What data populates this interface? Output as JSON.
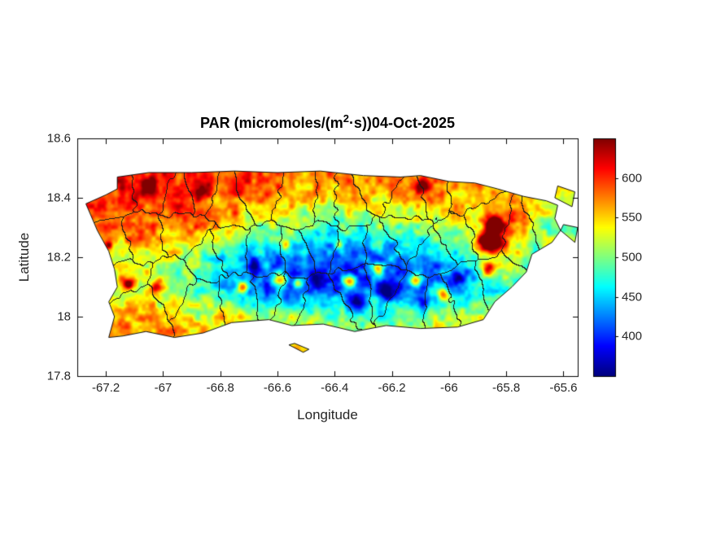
{
  "figure": {
    "background": "#ffffff",
    "title": {
      "prefix": "PAR (micromoles/(m",
      "sup": "2",
      "suffix": "·s))04-Oct-2025",
      "full": "PAR (micromoles/(m^2·s))04-Oct-2025"
    },
    "xlabel": "Longitude",
    "ylabel": "Latitude"
  },
  "chart_data": {
    "type": "heatmap",
    "title": "PAR (micromoles/(m^2·s))04-Oct-2025",
    "variable": "PAR",
    "units": "micromoles/(m^2·s)",
    "date": "04-Oct-2025",
    "region": "Puerto Rico",
    "xlabel": "Longitude",
    "ylabel": "Latitude",
    "xlim": [
      -67.3,
      -65.55
    ],
    "ylim": [
      17.8,
      18.6
    ],
    "xticks": [
      -67.2,
      -67,
      -66.8,
      -66.6,
      -66.4,
      -66.2,
      -66,
      -65.8,
      -65.6
    ],
    "xtick_labels": [
      "-67.2",
      "-67",
      "-66.8",
      "-66.6",
      "-66.4",
      "-66.2",
      "-66",
      "-65.8",
      "-65.6"
    ],
    "yticks": [
      17.8,
      18,
      18.2,
      18.4,
      18.6
    ],
    "ytick_labels": [
      "17.8",
      "18",
      "18.2",
      "18.4",
      "18.6"
    ],
    "colormap": "jet",
    "clim": [
      350,
      650
    ],
    "colorbar": {
      "orientation": "vertical",
      "ticks": [
        400,
        450,
        500,
        550,
        600
      ],
      "tick_labels": [
        "400",
        "450",
        "500",
        "550",
        "600"
      ]
    },
    "colors": {
      "coastline": "#111111",
      "boundary": "#1a1a1a",
      "axis": "#262626"
    },
    "grid_lon": [
      -67.3,
      -67.2,
      -67.1,
      -67.0,
      -66.9,
      -66.8,
      -66.7,
      -66.6,
      -66.5,
      -66.4,
      -66.3,
      -66.2,
      -66.1,
      -66.0,
      -65.9,
      -65.8,
      -65.7,
      -65.6
    ],
    "grid_lat": [
      17.9,
      18.0,
      18.1,
      18.2,
      18.3,
      18.4,
      18.5,
      18.6
    ],
    "values": [
      [
        560,
        570,
        580,
        575,
        565,
        560,
        555,
        560,
        545,
        540,
        535,
        540,
        545,
        550,
        550,
        545,
        540,
        535
      ],
      [
        545,
        560,
        575,
        560,
        545,
        535,
        525,
        515,
        500,
        490,
        485,
        495,
        505,
        515,
        530,
        530,
        515,
        505
      ],
      [
        505,
        520,
        535,
        515,
        495,
        455,
        420,
        405,
        395,
        400,
        410,
        405,
        415,
        425,
        445,
        480,
        470,
        490
      ],
      [
        515,
        535,
        550,
        525,
        500,
        465,
        440,
        425,
        415,
        410,
        420,
        430,
        440,
        450,
        470,
        540,
        490,
        480
      ],
      [
        555,
        570,
        580,
        580,
        570,
        550,
        525,
        510,
        495,
        485,
        495,
        490,
        505,
        515,
        540,
        600,
        530,
        500
      ],
      [
        585,
        600,
        610,
        605,
        595,
        590,
        580,
        570,
        555,
        540,
        550,
        555,
        565,
        565,
        560,
        545,
        540,
        520
      ],
      [
        595,
        600,
        605,
        600,
        595,
        600,
        595,
        590,
        590,
        585,
        590,
        585,
        590,
        585,
        580,
        575,
        570,
        565
      ],
      [
        600,
        600,
        600,
        600,
        595,
        595,
        595,
        595,
        595,
        590,
        590,
        590,
        590,
        590,
        585,
        585,
        585,
        585
      ]
    ],
    "island_outline": [
      [
        -67.16,
        18.47
      ],
      [
        -67.05,
        18.485
      ],
      [
        -66.9,
        18.485
      ],
      [
        -66.75,
        18.49
      ],
      [
        -66.6,
        18.485
      ],
      [
        -66.45,
        18.49
      ],
      [
        -66.3,
        18.475
      ],
      [
        -66.17,
        18.47
      ],
      [
        -66.1,
        18.475
      ],
      [
        -66.0,
        18.455
      ],
      [
        -65.91,
        18.45
      ],
      [
        -65.83,
        18.43
      ],
      [
        -65.74,
        18.405
      ],
      [
        -65.66,
        18.39
      ],
      [
        -65.62,
        18.375
      ],
      [
        -65.63,
        18.33
      ],
      [
        -65.61,
        18.29
      ],
      [
        -65.64,
        18.25
      ],
      [
        -65.71,
        18.21
      ],
      [
        -65.73,
        18.15
      ],
      [
        -65.78,
        18.1
      ],
      [
        -65.84,
        18.05
      ],
      [
        -65.88,
        17.99
      ],
      [
        -65.97,
        17.965
      ],
      [
        -66.1,
        17.96
      ],
      [
        -66.22,
        17.97
      ],
      [
        -66.33,
        17.95
      ],
      [
        -66.44,
        17.975
      ],
      [
        -66.55,
        17.97
      ],
      [
        -66.63,
        17.99
      ],
      [
        -66.76,
        17.98
      ],
      [
        -66.86,
        17.945
      ],
      [
        -66.96,
        17.93
      ],
      [
        -67.06,
        17.95
      ],
      [
        -67.14,
        17.935
      ],
      [
        -67.19,
        17.93
      ],
      [
        -67.17,
        18.0
      ],
      [
        -67.19,
        18.05
      ],
      [
        -67.16,
        18.1
      ],
      [
        -67.17,
        18.16
      ],
      [
        -67.19,
        18.22
      ],
      [
        -67.23,
        18.29
      ],
      [
        -67.27,
        18.38
      ],
      [
        -67.2,
        18.41
      ],
      [
        -67.16,
        18.43
      ]
    ],
    "islets": [
      [
        [
          -65.62,
          18.44
        ],
        [
          -65.56,
          18.42
        ],
        [
          -65.57,
          18.37
        ],
        [
          -65.63,
          18.4
        ]
      ],
      [
        [
          -65.61,
          18.29
        ],
        [
          -65.56,
          18.25
        ],
        [
          -65.55,
          18.3
        ],
        [
          -65.6,
          18.31
        ]
      ],
      [
        [
          -66.56,
          17.905
        ],
        [
          -66.51,
          17.88
        ],
        [
          -66.49,
          17.89
        ],
        [
          -66.54,
          17.91
        ]
      ]
    ],
    "hotspots": [
      [
        -67.12,
        18.11,
        140,
        0.02
      ],
      [
        -67.02,
        18.1,
        120,
        0.02
      ],
      [
        -66.72,
        18.1,
        150,
        0.02
      ],
      [
        -66.59,
        18.12,
        160,
        0.025
      ],
      [
        -66.53,
        18.11,
        140,
        0.018
      ],
      [
        -66.35,
        18.12,
        170,
        0.022
      ],
      [
        -66.25,
        18.16,
        120,
        0.018
      ],
      [
        -66.12,
        18.12,
        130,
        0.02
      ],
      [
        -66.02,
        18.08,
        120,
        0.02
      ],
      [
        -65.86,
        18.25,
        200,
        0.04
      ],
      [
        -65.86,
        18.16,
        140,
        0.025
      ],
      [
        -65.84,
        18.31,
        170,
        0.03
      ],
      [
        -66.57,
        18.24,
        100,
        0.015
      ],
      [
        -66.38,
        18.24,
        90,
        0.015
      ],
      [
        -67.06,
        18.44,
        90,
        0.03
      ],
      [
        -66.86,
        18.42,
        80,
        0.03
      ],
      [
        -66.09,
        18.44,
        90,
        0.025
      ],
      [
        -67.19,
        18.24,
        110,
        0.015
      ],
      [
        -66.21,
        18.08,
        -90,
        0.03
      ],
      [
        -66.09,
        18.05,
        -80,
        0.025
      ],
      [
        -65.97,
        18.13,
        -70,
        0.025
      ],
      [
        -66.32,
        18.05,
        -80,
        0.03
      ],
      [
        -66.47,
        18.13,
        -70,
        0.025
      ],
      [
        -66.68,
        18.17,
        -60,
        0.025
      ]
    ],
    "region_overlay": {
      "type": "municipality-boundaries",
      "count": 51,
      "seed": 1234
    }
  }
}
